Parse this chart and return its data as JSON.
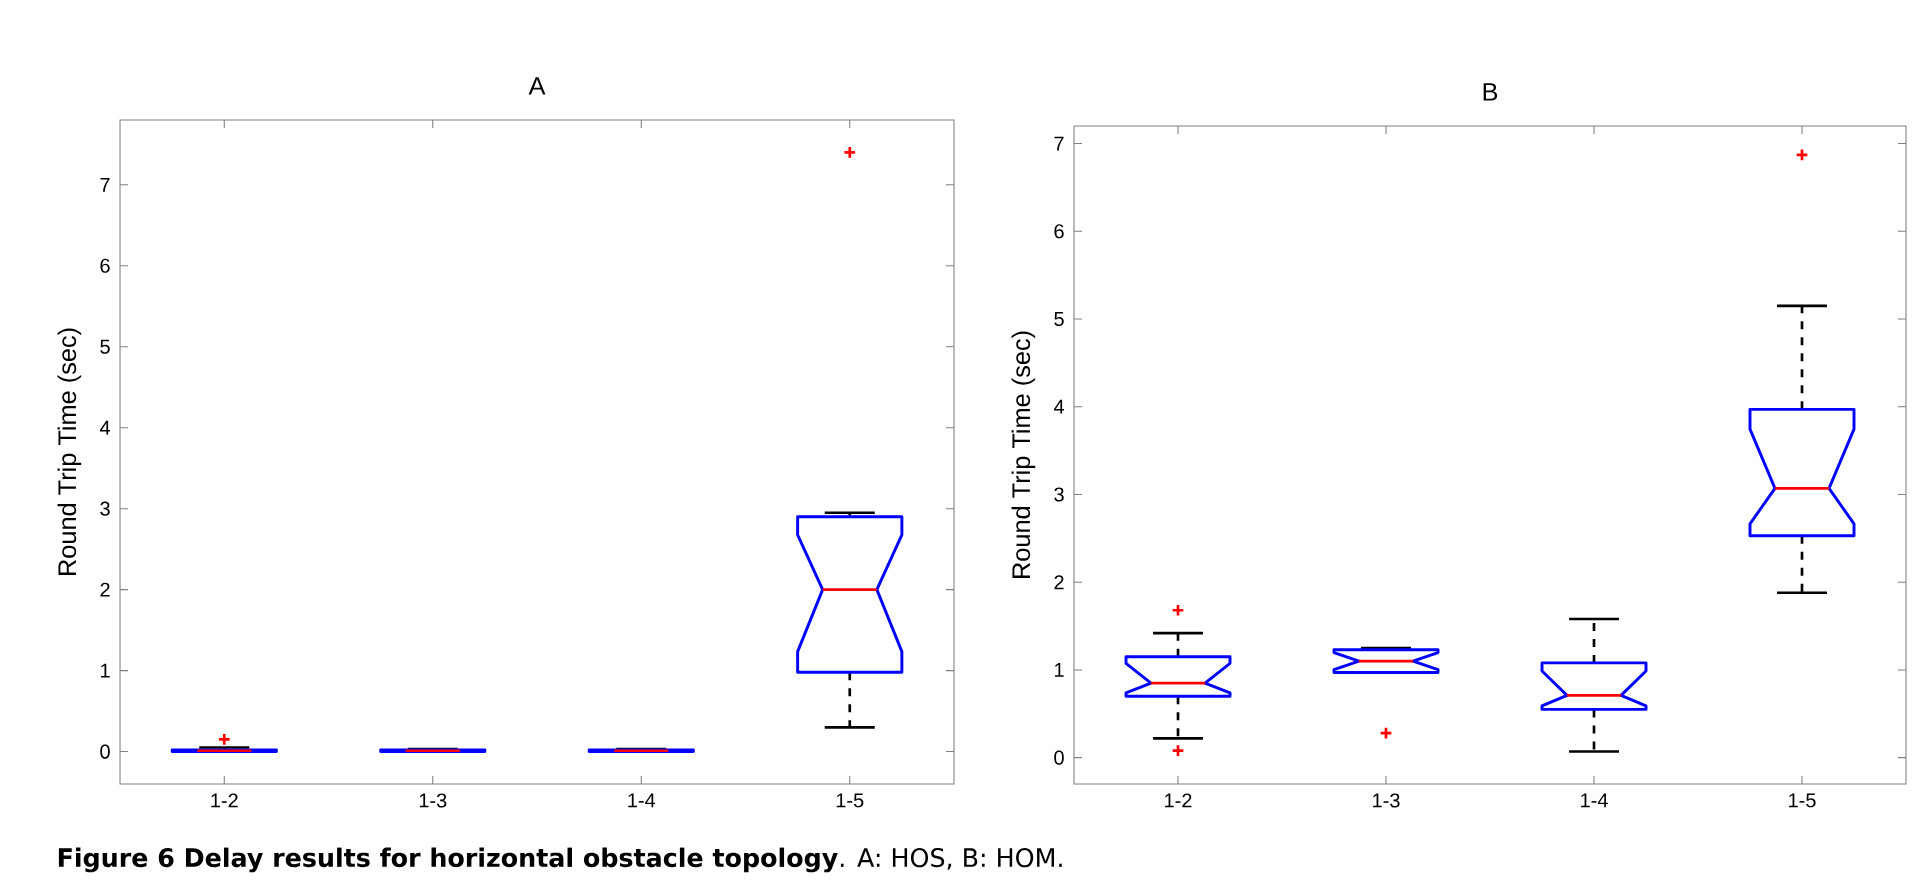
{
  "chart_data": [
    {
      "type": "box",
      "title": "A",
      "ylabel": "Round Trip Time (sec)",
      "categories": [
        "1-2",
        "1-3",
        "1-4",
        "1-5"
      ],
      "ylim": [
        -0.4,
        7.8
      ],
      "yticks": [
        0,
        1,
        2,
        3,
        4,
        5,
        6,
        7
      ],
      "boxes": [
        {
          "low": 0,
          "q1": 0,
          "median": 0.01,
          "q3": 0.02,
          "high": 0.05,
          "outliers": [
            0.15
          ]
        },
        {
          "low": 0,
          "q1": 0,
          "median": 0.01,
          "q3": 0.02,
          "high": 0.03
        },
        {
          "low": 0,
          "q1": 0,
          "median": 0.01,
          "q3": 0.02,
          "high": 0.03
        },
        {
          "low": 0.3,
          "q1": 0.98,
          "median": 2.0,
          "q3": 2.9,
          "high": 2.95,
          "outliers": [
            7.4
          ]
        }
      ],
      "annotations": [
        "**Figure 6 Delay results for horizontal obstacle topology**. A: HOS, B: HOM."
      ]
    },
    {
      "type": "box",
      "title": "B",
      "ylabel": "Round Trip Time (sec)",
      "categories": [
        "1-2",
        "1-3",
        "1-4",
        "1-5"
      ],
      "ylim": [
        -0.3,
        7.2
      ],
      "yticks": [
        0,
        1,
        2,
        3,
        4,
        5,
        6,
        7
      ],
      "boxes": [
        {
          "low": 0.22,
          "q1": 0.7,
          "median": 0.85,
          "q3": 1.15,
          "high": 1.42,
          "outliers": [
            1.68,
            0.08
          ]
        },
        {
          "low": 0.97,
          "q1": 0.97,
          "median": 1.1,
          "q3": 1.23,
          "high": 1.25,
          "outliers": [
            0.28
          ]
        },
        {
          "low": 0.07,
          "q1": 0.55,
          "median": 0.71,
          "q3": 1.08,
          "high": 1.58
        },
        {
          "low": 1.88,
          "q1": 2.53,
          "median": 3.07,
          "q3": 3.97,
          "high": 5.15,
          "outliers": [
            6.87
          ]
        }
      ]
    }
  ]
}
